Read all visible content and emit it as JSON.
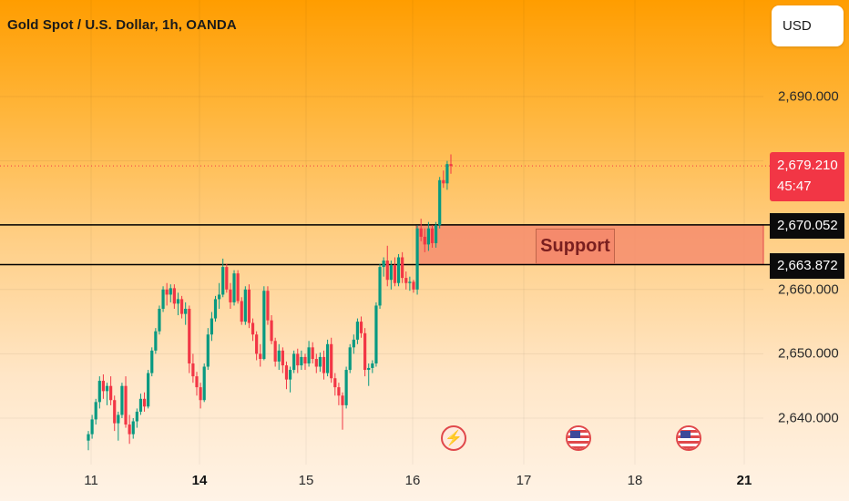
{
  "header": {
    "title": "Gold Spot / U.S. Dollar, 1h, OANDA",
    "currency_button": "USD"
  },
  "price_axis": {
    "labels": [
      "2,690.000",
      "2,660.000",
      "2,650.000",
      "2,640.000"
    ],
    "current_price": "2,679.210",
    "countdown": "45:47",
    "level_upper": "2,670.052",
    "level_lower": "2,663.872"
  },
  "time_axis": {
    "labels": [
      "11",
      "14",
      "15",
      "16",
      "17",
      "18",
      "21"
    ]
  },
  "annotations": {
    "support_label": "Support"
  },
  "events": [
    {
      "icon": "lightning-bolt-icon"
    },
    {
      "icon": "us-flag-icon"
    },
    {
      "icon": "us-flag-icon"
    }
  ],
  "colors": {
    "up": "#089981",
    "down": "#f23645",
    "support_zone": "#f58a6c",
    "level_line": "#000000",
    "price_line": "#f23645"
  },
  "chart_data": {
    "type": "candlestick",
    "title": "Gold Spot / U.S. Dollar, 1h, OANDA",
    "ylim": [
      2634,
      2699
    ],
    "support_zone": [
      2663.872,
      2670.052
    ],
    "horizontal_lines": [
      2670.052,
      2663.872
    ],
    "current_price": 2679.21,
    "x_ticks": [
      "11",
      "14",
      "15",
      "16",
      "17",
      "18",
      "21"
    ],
    "ohlc": [
      [
        2636.5,
        2638.0,
        2635.0,
        2637.5
      ],
      [
        2637.5,
        2640.5,
        2636.8,
        2639.8
      ],
      [
        2639.8,
        2643.0,
        2639.0,
        2642.5
      ],
      [
        2642.5,
        2646.5,
        2641.5,
        2645.8
      ],
      [
        2645.8,
        2646.8,
        2643.0,
        2644.2
      ],
      [
        2644.2,
        2645.5,
        2642.0,
        2645.0
      ],
      [
        2645.0,
        2646.5,
        2642.0,
        2642.8
      ],
      [
        2642.8,
        2643.5,
        2638.0,
        2639.2
      ],
      [
        2639.2,
        2641.0,
        2636.5,
        2640.5
      ],
      [
        2640.5,
        2645.5,
        2640.0,
        2645.0
      ],
      [
        2645.0,
        2646.5,
        2638.5,
        2639.0
      ],
      [
        2639.0,
        2640.5,
        2636.0,
        2637.5
      ],
      [
        2637.5,
        2640.0,
        2636.8,
        2639.5
      ],
      [
        2639.5,
        2641.5,
        2638.5,
        2641.0
      ],
      [
        2641.0,
        2643.8,
        2640.5,
        2643.0
      ],
      [
        2643.0,
        2644.0,
        2641.0,
        2641.8
      ],
      [
        2641.8,
        2647.5,
        2641.5,
        2647.0
      ],
      [
        2647.0,
        2651.0,
        2646.5,
        2650.5
      ],
      [
        2650.5,
        2654.0,
        2650.0,
        2653.5
      ],
      [
        2653.5,
        2657.5,
        2653.0,
        2657.0
      ],
      [
        2657.0,
        2660.5,
        2656.5,
        2660.0
      ],
      [
        2660.0,
        2661.0,
        2657.5,
        2659.2
      ],
      [
        2659.2,
        2660.8,
        2658.0,
        2660.2
      ],
      [
        2660.2,
        2660.8,
        2657.0,
        2657.8
      ],
      [
        2657.8,
        2659.5,
        2656.0,
        2658.5
      ],
      [
        2658.5,
        2659.0,
        2655.5,
        2656.2
      ],
      [
        2656.2,
        2658.0,
        2654.5,
        2657.0
      ],
      [
        2657.0,
        2657.5,
        2647.0,
        2648.5
      ],
      [
        2648.5,
        2650.0,
        2645.5,
        2646.5
      ],
      [
        2646.5,
        2647.2,
        2643.5,
        2644.8
      ],
      [
        2644.8,
        2645.5,
        2641.5,
        2642.8
      ],
      [
        2642.8,
        2648.5,
        2642.5,
        2648.0
      ],
      [
        2648.0,
        2654.0,
        2647.5,
        2653.0
      ],
      [
        2653.0,
        2656.5,
        2652.0,
        2655.5
      ],
      [
        2655.5,
        2659.0,
        2655.0,
        2658.5
      ],
      [
        2658.5,
        2661.0,
        2657.0,
        2659.2
      ],
      [
        2659.2,
        2664.8,
        2658.8,
        2663.5
      ],
      [
        2663.5,
        2664.0,
        2659.5,
        2660.0
      ],
      [
        2660.0,
        2661.0,
        2657.0,
        2658.0
      ],
      [
        2658.0,
        2663.0,
        2657.5,
        2662.5
      ],
      [
        2662.5,
        2663.0,
        2657.8,
        2658.2
      ],
      [
        2658.2,
        2658.8,
        2654.5,
        2655.0
      ],
      [
        2655.0,
        2660.5,
        2654.5,
        2660.0
      ],
      [
        2660.0,
        2660.8,
        2654.0,
        2654.8
      ],
      [
        2654.8,
        2655.5,
        2652.0,
        2653.0
      ],
      [
        2653.0,
        2653.5,
        2649.0,
        2650.0
      ],
      [
        2650.0,
        2651.5,
        2648.0,
        2649.2
      ],
      [
        2649.2,
        2660.5,
        2649.0,
        2659.8
      ],
      [
        2659.8,
        2660.5,
        2654.5,
        2655.2
      ],
      [
        2655.2,
        2656.0,
        2651.5,
        2652.0
      ],
      [
        2652.0,
        2652.5,
        2648.0,
        2648.8
      ],
      [
        2648.8,
        2651.5,
        2647.5,
        2650.5
      ],
      [
        2650.5,
        2651.0,
        2647.0,
        2648.2
      ],
      [
        2648.2,
        2648.8,
        2644.5,
        2646.0
      ],
      [
        2646.0,
        2648.0,
        2644.0,
        2647.5
      ],
      [
        2647.5,
        2650.5,
        2647.0,
        2650.0
      ],
      [
        2650.0,
        2650.8,
        2647.0,
        2648.2
      ],
      [
        2648.2,
        2650.5,
        2647.5,
        2649.5
      ],
      [
        2649.5,
        2650.0,
        2647.5,
        2648.5
      ],
      [
        2648.5,
        2652.0,
        2648.0,
        2651.0
      ],
      [
        2651.0,
        2651.8,
        2648.5,
        2649.2
      ],
      [
        2649.2,
        2650.0,
        2647.0,
        2648.0
      ],
      [
        2648.0,
        2650.2,
        2647.2,
        2649.5
      ],
      [
        2649.5,
        2650.5,
        2646.0,
        2647.0
      ],
      [
        2647.0,
        2652.2,
        2646.5,
        2651.5
      ],
      [
        2651.5,
        2652.5,
        2645.5,
        2646.2
      ],
      [
        2646.2,
        2647.0,
        2643.5,
        2644.8
      ],
      [
        2644.8,
        2645.5,
        2642.0,
        2643.5
      ],
      [
        2643.5,
        2644.0,
        2638.2,
        2642.0
      ],
      [
        2642.0,
        2648.0,
        2641.5,
        2647.5
      ],
      [
        2647.5,
        2651.5,
        2647.0,
        2651.0
      ],
      [
        2651.0,
        2653.0,
        2650.0,
        2652.2
      ],
      [
        2652.2,
        2655.5,
        2651.5,
        2655.0
      ],
      [
        2655.0,
        2655.8,
        2652.5,
        2653.2
      ],
      [
        2653.2,
        2654.0,
        2646.5,
        2647.5
      ],
      [
        2647.5,
        2648.5,
        2645.0,
        2647.8
      ],
      [
        2647.8,
        2649.0,
        2647.0,
        2648.5
      ],
      [
        2648.5,
        2658.0,
        2648.0,
        2657.5
      ],
      [
        2657.5,
        2664.0,
        2657.0,
        2663.5
      ],
      [
        2663.5,
        2665.0,
        2662.0,
        2664.5
      ],
      [
        2664.5,
        2666.8,
        2660.5,
        2661.5
      ],
      [
        2661.5,
        2664.5,
        2660.0,
        2663.8
      ],
      [
        2663.8,
        2665.0,
        2660.5,
        2661.0
      ],
      [
        2661.0,
        2665.5,
        2660.5,
        2665.0
      ],
      [
        2665.0,
        2665.8,
        2661.0,
        2661.8
      ],
      [
        2661.8,
        2662.8,
        2660.0,
        2661.0
      ],
      [
        2661.0,
        2662.0,
        2659.8,
        2661.2
      ],
      [
        2661.2,
        2661.5,
        2659.5,
        2660.0
      ],
      [
        2660.0,
        2670.0,
        2659.2,
        2669.5
      ],
      [
        2669.5,
        2671.0,
        2667.5,
        2668.2
      ],
      [
        2668.2,
        2669.5,
        2665.8,
        2667.0
      ],
      [
        2667.0,
        2670.5,
        2666.0,
        2669.5
      ],
      [
        2669.5,
        2670.0,
        2666.5,
        2667.2
      ],
      [
        2667.2,
        2670.5,
        2666.5,
        2670.0
      ],
      [
        2670.0,
        2677.5,
        2669.5,
        2677.0
      ],
      [
        2677.0,
        2678.5,
        2675.8,
        2676.5
      ],
      [
        2676.5,
        2680.0,
        2675.5,
        2679.5
      ],
      [
        2679.5,
        2681.0,
        2678.0,
        2679.2
      ]
    ]
  }
}
